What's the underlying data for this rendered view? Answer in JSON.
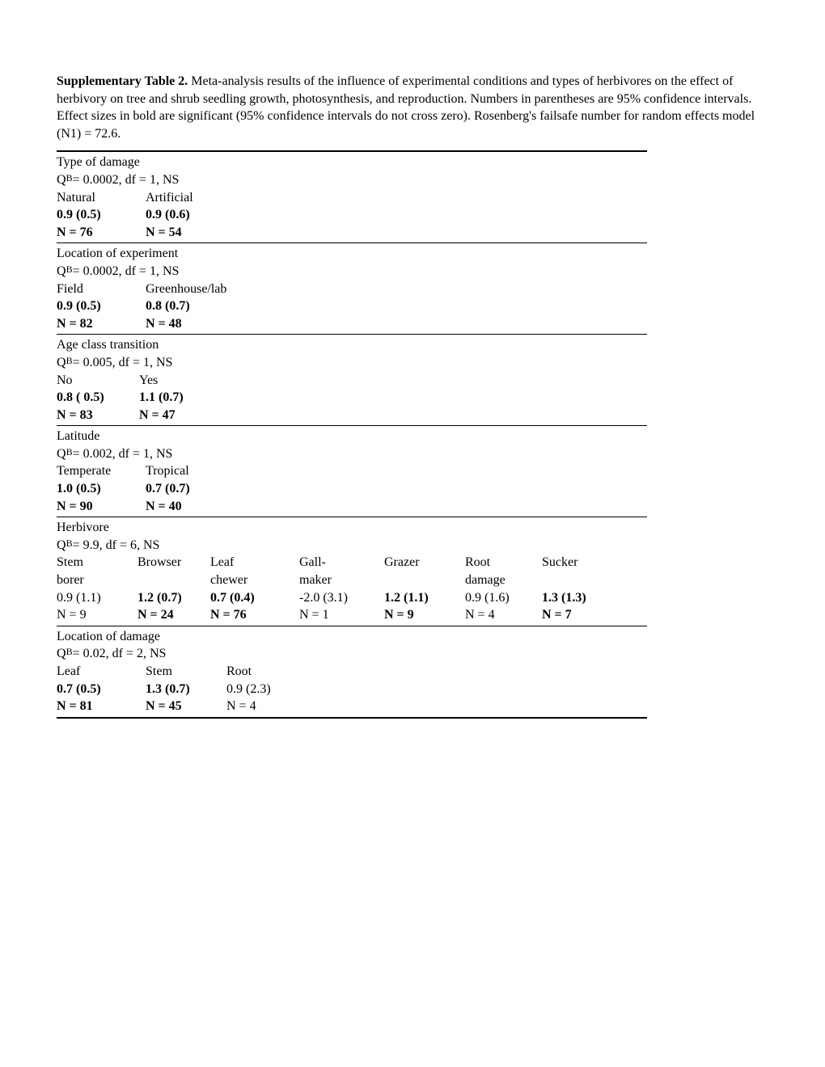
{
  "caption": {
    "title": "Supplementary Table 2.",
    "body": "  Meta-analysis results of the influence of experimental conditions and types of herbivores on the effect of herbivory on tree and shrub seedling growth, photosynthesis, and reproduction.  Numbers in parentheses are 95% confidence intervals.  Effect sizes in bold are significant (95% confidence intervals do not cross zero).  Rosenberg's failsafe number for random effects model (N1) = 72.6."
  },
  "sections": [
    {
      "title": "Type of damage",
      "qb_value": "0.0002",
      "df": "1",
      "ns": "NS",
      "columns": [
        {
          "label": "Natural",
          "effect": "0.9 (0.5)",
          "n": "N = 76",
          "bold_effect": true,
          "bold_n": true
        },
        {
          "label": "Artificial",
          "effect": "0.9 (0.6)",
          "n": "N = 54",
          "bold_effect": true,
          "bold_n": true
        }
      ],
      "widths": [
        110,
        140
      ]
    },
    {
      "title": "Location of experiment",
      "qb_value": "0.0002",
      "df": "1",
      "ns": "NS",
      "columns": [
        {
          "label": "Field",
          "effect": "0.9 (0.5)",
          "n": "N = 82",
          "bold_effect": true,
          "bold_n": true
        },
        {
          "label": "Greenhouse/lab",
          "effect": "0.8 (0.7)",
          "n": "N = 48",
          "bold_effect": true,
          "bold_n": true
        }
      ],
      "widths": [
        110,
        160
      ]
    },
    {
      "title": "Age class transition",
      "qb_value": "0.005",
      "df": "1",
      "ns": "NS",
      "columns": [
        {
          "label": "No",
          "effect": "0.8 ( 0.5)",
          "n": "N = 83",
          "bold_effect": true,
          "bold_n": true
        },
        {
          "label": "Yes",
          "effect": "1.1 (0.7)",
          "n": "N = 47",
          "bold_effect": true,
          "bold_n": true
        }
      ],
      "widths": [
        102,
        140
      ]
    },
    {
      "title": "Latitude",
      "qb_value": "0.002",
      "df": "1",
      "ns": "NS",
      "columns": [
        {
          "label": "Temperate",
          "effect": "1.0 (0.5)",
          "n": "N = 90",
          "bold_effect": true,
          "bold_n": true
        },
        {
          "label": "Tropical",
          "effect": "0.7 (0.7)",
          "n": "N = 40",
          "bold_effect": true,
          "bold_n": true
        }
      ],
      "widths": [
        110,
        140
      ]
    },
    {
      "title": "Herbivore",
      "qb_value": "9.9",
      "df": "6",
      "ns": "NS",
      "columns": [
        {
          "label": "Stem",
          "label2": "borer",
          "effect": "0.9 (1.1)",
          "n": "N = 9",
          "bold_effect": false,
          "bold_n": false
        },
        {
          "label": "Browser",
          "label2": "",
          "effect": "1.2 (0.7)",
          "n": "N = 24",
          "bold_effect": true,
          "bold_n": true
        },
        {
          "label": "Leaf",
          "label2": "chewer",
          "effect": "0.7 (0.4)",
          "n": "N = 76",
          "bold_effect": true,
          "bold_n": true
        },
        {
          "label": "Gall-",
          "label2": "maker",
          "effect": "-2.0 (3.1)",
          "n": "N = 1",
          "bold_effect": false,
          "bold_n": false
        },
        {
          "label": "Grazer",
          "label2": "",
          "effect": "1.2 (1.1)",
          "n": "N = 9",
          "bold_effect": true,
          "bold_n": true
        },
        {
          "label": "Root",
          "label2": "damage",
          "effect": "0.9 (1.6)",
          "n": "N = 4",
          "bold_effect": false,
          "bold_n": false
        },
        {
          "label": "Sucker",
          "label2": "",
          "effect": "1.3 (1.3)",
          "n": "N = 7",
          "bold_effect": true,
          "bold_n": true
        }
      ],
      "two_line_label": true,
      "widths": [
        100,
        90,
        110,
        105,
        100,
        95,
        100
      ]
    },
    {
      "title": "Location of damage",
      "qb_value": "0.02",
      "df": "2",
      "ns": "NS",
      "columns": [
        {
          "label": "Leaf",
          "effect": "0.7 (0.5)",
          "n": "N = 81",
          "bold_effect": true,
          "bold_n": true
        },
        {
          "label": "Stem",
          "effect": "1.3 (0.7)",
          "n": "N = 45",
          "bold_effect": true,
          "bold_n": true
        },
        {
          "label": "Root",
          "effect": "0.9 (2.3)",
          "n": "N = 4",
          "bold_effect": false,
          "bold_n": false
        }
      ],
      "widths": [
        110,
        100,
        140
      ]
    }
  ]
}
